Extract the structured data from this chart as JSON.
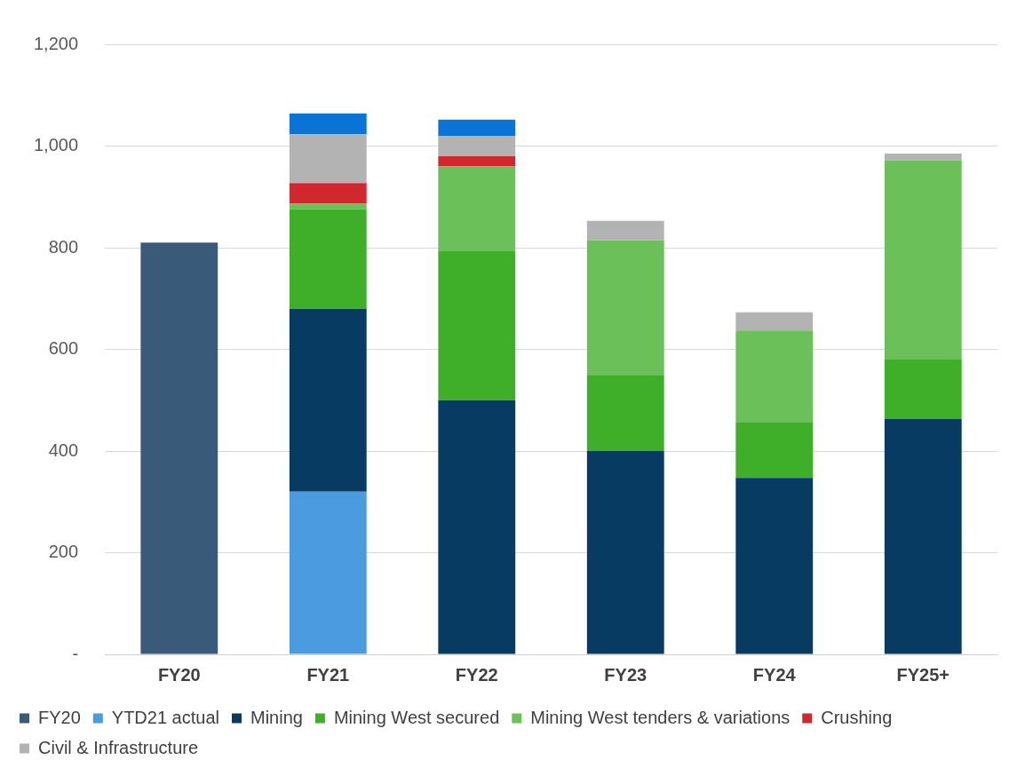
{
  "chart_data": {
    "type": "bar",
    "stacked": true,
    "categories": [
      "FY20",
      "FY21",
      "FY22",
      "FY23",
      "FY24",
      "FY25+"
    ],
    "series": [
      {
        "name": "FY20",
        "color": "#3a5a7a",
        "values": [
          810,
          null,
          null,
          null,
          null,
          null
        ]
      },
      {
        "name": "YTD21 actual",
        "color": "#4a9be0",
        "values": [
          null,
          320,
          null,
          null,
          null,
          null
        ]
      },
      {
        "name": "Mining",
        "color": "#073b62",
        "values": [
          null,
          360,
          500,
          400,
          347,
          463
        ]
      },
      {
        "name": "Mining West secured",
        "color": "#3faf2a",
        "values": [
          null,
          196,
          293,
          150,
          110,
          117
        ]
      },
      {
        "name": "Mining West tenders & variations",
        "color": "#6cc05a",
        "values": [
          null,
          11,
          167,
          265,
          180,
          392
        ]
      },
      {
        "name": "Crushing",
        "color": "#d0282e",
        "values": [
          null,
          40,
          20,
          null,
          null,
          null
        ]
      },
      {
        "name": "Civil & Infrastructure",
        "color": "#b3b3b3",
        "values": [
          null,
          96,
          40,
          38,
          36,
          13
        ]
      },
      {
        "color": "#0a74d6",
        "values": [
          null,
          41,
          32,
          null,
          null,
          null
        ]
      }
    ],
    "ylim": [
      0,
      1200
    ],
    "yticks": [
      {
        "value": 0,
        "label": "-"
      },
      {
        "value": 200,
        "label": "200"
      },
      {
        "value": 400,
        "label": "400"
      },
      {
        "value": 600,
        "label": "600"
      },
      {
        "value": 800,
        "label": "800"
      },
      {
        "value": 1000,
        "label": "1,000"
      },
      {
        "value": 1200,
        "label": "1,200"
      }
    ],
    "grid": "y",
    "legend": "bottom"
  }
}
